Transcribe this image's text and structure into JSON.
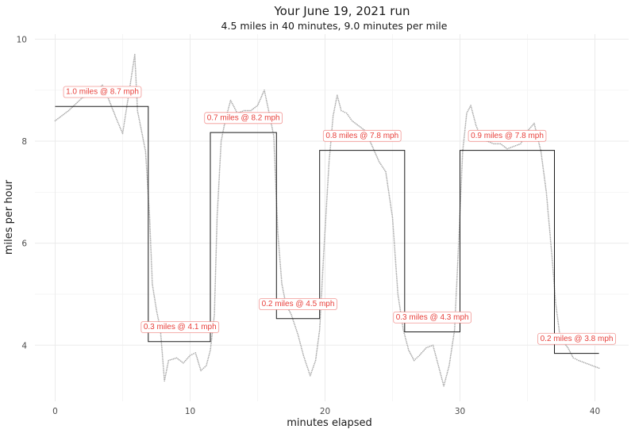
{
  "chart_data": {
    "type": "line",
    "title": "Your June 19, 2021 run",
    "subtitle": "4.5 miles in 40 minutes, 9.0 minutes per mile",
    "xlabel": "minutes elapsed",
    "ylabel": "miles per hour",
    "xlim": [
      -1.5,
      42.5
    ],
    "ylim": [
      2.9,
      10.1
    ],
    "x_ticks": [
      0,
      10,
      20,
      30,
      40
    ],
    "y_ticks": [
      4,
      6,
      8,
      10
    ],
    "grid": true,
    "minor_grid": true,
    "colors": {
      "speed": "#a8a8a8",
      "step": "#1a1a1a",
      "label": "#e8413c",
      "grid": "#ebebeb"
    },
    "series": [
      {
        "kind": "speed",
        "x": [
          0,
          1,
          2,
          3,
          3.5,
          4,
          4.6,
          5,
          5.5,
          5.9,
          6.1,
          6.4,
          6.7,
          7,
          7.2,
          7.5,
          7.8,
          8.1,
          8.4,
          9,
          9.5,
          10,
          10.4,
          10.8,
          11.2,
          11.5,
          11.8,
          12,
          12.3,
          12.6,
          13,
          13.5,
          14,
          14.5,
          15,
          15.5,
          15.9,
          16.2,
          16.5,
          16.8,
          17.1,
          17.5,
          18,
          18.4,
          18.9,
          19.3,
          19.6,
          19.9,
          20.3,
          20.6,
          20.9,
          21.2,
          21.6,
          22,
          22.5,
          23,
          23.5,
          24,
          24.5,
          25,
          25.4,
          25.8,
          26.2,
          26.6,
          27,
          27.5,
          28,
          28.4,
          28.8,
          29.2,
          29.6,
          29.9,
          30.2,
          30.5,
          30.8,
          31.2,
          31.6,
          32,
          32.5,
          33,
          33.5,
          34,
          34.5,
          35,
          35.5,
          36,
          36.4,
          36.8,
          37.1,
          37.4,
          37.7,
          38,
          38.4,
          38.8,
          39.3,
          39.8,
          40.3
        ],
        "values": [
          8.4,
          8.6,
          8.85,
          8.95,
          9.1,
          8.8,
          8.4,
          8.15,
          9.0,
          9.7,
          8.6,
          8.2,
          7.8,
          6.5,
          5.2,
          4.7,
          4.3,
          3.3,
          3.7,
          3.75,
          3.65,
          3.8,
          3.85,
          3.5,
          3.6,
          3.9,
          4.6,
          6.5,
          8.0,
          8.4,
          8.8,
          8.55,
          8.6,
          8.6,
          8.7,
          9.0,
          8.5,
          8.1,
          6.2,
          5.2,
          4.8,
          4.6,
          4.2,
          3.8,
          3.4,
          3.7,
          4.3,
          5.8,
          7.6,
          8.5,
          8.9,
          8.6,
          8.55,
          8.4,
          8.3,
          8.2,
          7.9,
          7.6,
          7.4,
          6.5,
          5.0,
          4.3,
          3.9,
          3.7,
          3.8,
          3.95,
          4.0,
          3.6,
          3.2,
          3.6,
          4.3,
          6.0,
          7.8,
          8.55,
          8.7,
          8.3,
          8.05,
          8.0,
          7.95,
          7.95,
          7.85,
          7.9,
          7.95,
          8.2,
          8.35,
          7.8,
          7.0,
          5.8,
          4.8,
          4.2,
          4.05,
          3.95,
          3.75,
          3.7,
          3.65,
          3.6,
          3.55
        ]
      },
      {
        "kind": "step",
        "x": [
          0,
          6.9,
          6.9,
          11.5,
          11.5,
          16.4,
          16.4,
          19.6,
          19.6,
          25.9,
          25.9,
          30.0,
          30.0,
          37.0,
          37.0,
          40.3
        ],
        "values": [
          8.68,
          8.68,
          4.07,
          4.07,
          8.17,
          8.17,
          4.52,
          4.52,
          7.82,
          7.82,
          4.26,
          4.26,
          7.82,
          7.82,
          3.84,
          3.84
        ]
      }
    ],
    "segments": [
      {
        "label": "1.0 miles @ 8.7 mph",
        "x": 3.5,
        "y": 8.98
      },
      {
        "label": "0.3 miles @ 4.1 mph",
        "x": 9.25,
        "y": 4.37
      },
      {
        "label": "0.7 miles @ 8.2 mph",
        "x": 13.95,
        "y": 8.47
      },
      {
        "label": "0.2 miles @ 4.5 mph",
        "x": 18.0,
        "y": 4.82
      },
      {
        "label": "0.8 miles @ 7.8 mph",
        "x": 22.75,
        "y": 8.12
      },
      {
        "label": "0.3 miles @ 4.3 mph",
        "x": 27.95,
        "y": 4.56
      },
      {
        "label": "0.9 miles @ 7.8 mph",
        "x": 33.5,
        "y": 8.12
      },
      {
        "label": "0.2 miles @ 3.8 mph",
        "x": 38.65,
        "y": 4.14
      }
    ]
  }
}
